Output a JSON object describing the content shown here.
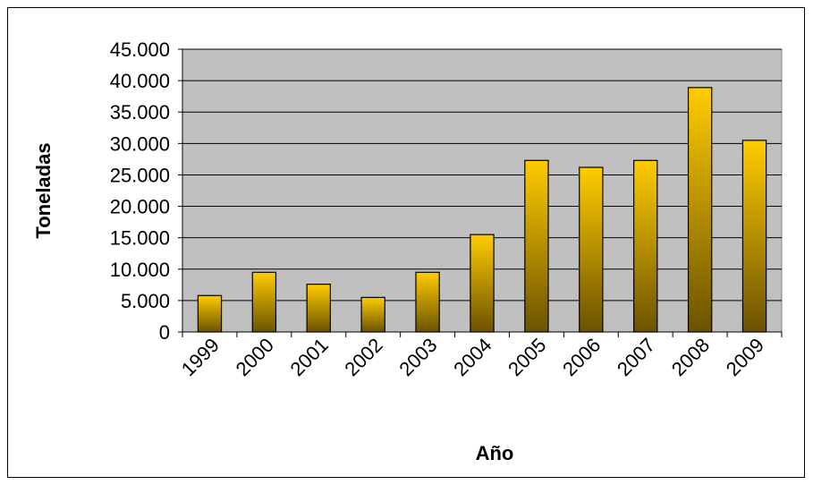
{
  "chart_data": {
    "type": "bar",
    "title": "",
    "xlabel": "Año",
    "ylabel": "Toneladas",
    "categories": [
      "1999",
      "2000",
      "2001",
      "2002",
      "2003",
      "2004",
      "2005",
      "2006",
      "2007",
      "2008",
      "2009"
    ],
    "values": [
      5800,
      9500,
      7600,
      5500,
      9500,
      15500,
      27300,
      26200,
      27300,
      38900,
      30500
    ],
    "ylim": [
      0,
      45000
    ],
    "yticks": [
      0,
      5000,
      10000,
      15000,
      20000,
      25000,
      30000,
      35000,
      40000,
      45000
    ],
    "ytick_labels": [
      "0",
      "5.000",
      "10.000",
      "15.000",
      "20.000",
      "25.000",
      "30.000",
      "35.000",
      "40.000",
      "45.000"
    ],
    "grid": true,
    "legend": "none",
    "colors": {
      "plot_background": "#c0c0c0",
      "bar_top": "#ffcc00",
      "bar_bottom": "#6b5200",
      "bar_border": "#000000",
      "gridline": "#000000"
    }
  }
}
